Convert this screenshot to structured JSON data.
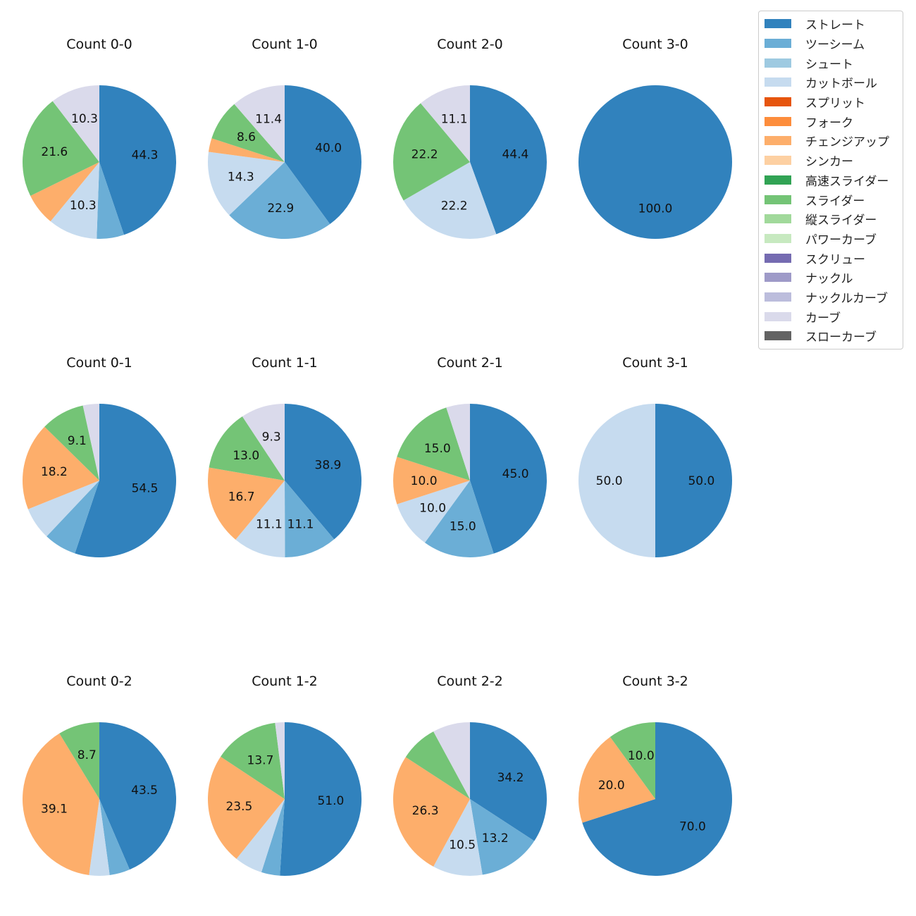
{
  "chart_data": {
    "type": "pie",
    "categories": [
      "ストレート",
      "ツーシーム",
      "シュート",
      "カットボール",
      "スプリット",
      "フォーク",
      "チェンジアップ",
      "シンカー",
      "高速スライダー",
      "スライダー",
      "縦スライダー",
      "パワーカーブ",
      "スクリュー",
      "ナックル",
      "ナックルカーブ",
      "カーブ",
      "スローカーブ"
    ],
    "colors": [
      "#3182bd",
      "#6baed6",
      "#9ecae1",
      "#c6dbef",
      "#e6550d",
      "#fd8d3c",
      "#fdae6b",
      "#fdd0a2",
      "#31a354",
      "#74c476",
      "#a1d99b",
      "#c7e9c0",
      "#756bb1",
      "#9e9ac8",
      "#bcbddc",
      "#dadaeb",
      "#636363"
    ],
    "pies": [
      {
        "title": "Count 0-0",
        "slices": [
          {
            "pitch": "ストレート",
            "value": 44.3,
            "label": "44.3"
          },
          {
            "pitch": "ツーシーム",
            "value": 5.7,
            "label": ""
          },
          {
            "pitch": "カットボール",
            "value": 10.3,
            "label": "10.3"
          },
          {
            "pitch": "チェンジアップ",
            "value": 6.7,
            "label": ""
          },
          {
            "pitch": "スライダー",
            "value": 21.6,
            "label": "21.6"
          },
          {
            "pitch": "カーブ",
            "value": 10.3,
            "label": "10.3"
          }
        ]
      },
      {
        "title": "Count 1-0",
        "slices": [
          {
            "pitch": "ストレート",
            "value": 40.0,
            "label": "40.0"
          },
          {
            "pitch": "ツーシーム",
            "value": 22.9,
            "label": "22.9"
          },
          {
            "pitch": "カットボール",
            "value": 14.3,
            "label": "14.3"
          },
          {
            "pitch": "チェンジアップ",
            "value": 2.9,
            "label": ""
          },
          {
            "pitch": "スライダー",
            "value": 8.6,
            "label": "8.6"
          },
          {
            "pitch": "カーブ",
            "value": 11.4,
            "label": "11.4"
          }
        ]
      },
      {
        "title": "Count 2-0",
        "slices": [
          {
            "pitch": "ストレート",
            "value": 44.4,
            "label": "44.4"
          },
          {
            "pitch": "カットボール",
            "value": 22.2,
            "label": "22.2"
          },
          {
            "pitch": "スライダー",
            "value": 22.2,
            "label": "22.2"
          },
          {
            "pitch": "カーブ",
            "value": 11.1,
            "label": "11.1"
          }
        ]
      },
      {
        "title": "Count 3-0",
        "slices": [
          {
            "pitch": "ストレート",
            "value": 100.0,
            "label": "100.0"
          }
        ]
      },
      {
        "title": "Count 0-1",
        "slices": [
          {
            "pitch": "ストレート",
            "value": 54.5,
            "label": "54.5"
          },
          {
            "pitch": "ツーシーム",
            "value": 6.8,
            "label": ""
          },
          {
            "pitch": "カットボール",
            "value": 6.8,
            "label": ""
          },
          {
            "pitch": "チェンジアップ",
            "value": 18.2,
            "label": "18.2"
          },
          {
            "pitch": "スライダー",
            "value": 9.1,
            "label": "9.1"
          },
          {
            "pitch": "カーブ",
            "value": 3.4,
            "label": ""
          }
        ]
      },
      {
        "title": "Count 1-1",
        "slices": [
          {
            "pitch": "ストレート",
            "value": 38.9,
            "label": "38.9"
          },
          {
            "pitch": "ツーシーム",
            "value": 11.1,
            "label": "11.1"
          },
          {
            "pitch": "カットボール",
            "value": 11.1,
            "label": "11.1"
          },
          {
            "pitch": "チェンジアップ",
            "value": 16.7,
            "label": "16.7"
          },
          {
            "pitch": "スライダー",
            "value": 13.0,
            "label": "13.0"
          },
          {
            "pitch": "カーブ",
            "value": 9.3,
            "label": "9.3"
          }
        ]
      },
      {
        "title": "Count 2-1",
        "slices": [
          {
            "pitch": "ストレート",
            "value": 45.0,
            "label": "45.0"
          },
          {
            "pitch": "ツーシーム",
            "value": 15.0,
            "label": "15.0"
          },
          {
            "pitch": "カットボール",
            "value": 10.0,
            "label": "10.0"
          },
          {
            "pitch": "チェンジアップ",
            "value": 10.0,
            "label": "10.0"
          },
          {
            "pitch": "スライダー",
            "value": 15.0,
            "label": "15.0"
          },
          {
            "pitch": "カーブ",
            "value": 5.0,
            "label": ""
          }
        ]
      },
      {
        "title": "Count 3-1",
        "slices": [
          {
            "pitch": "ストレート",
            "value": 50.0,
            "label": "50.0"
          },
          {
            "pitch": "カットボール",
            "value": 50.0,
            "label": "50.0"
          }
        ]
      },
      {
        "title": "Count 0-2",
        "slices": [
          {
            "pitch": "ストレート",
            "value": 43.5,
            "label": "43.5"
          },
          {
            "pitch": "ツーシーム",
            "value": 4.3,
            "label": ""
          },
          {
            "pitch": "カットボール",
            "value": 4.3,
            "label": ""
          },
          {
            "pitch": "チェンジアップ",
            "value": 39.1,
            "label": "39.1"
          },
          {
            "pitch": "スライダー",
            "value": 8.7,
            "label": "8.7"
          }
        ]
      },
      {
        "title": "Count 1-2",
        "slices": [
          {
            "pitch": "ストレート",
            "value": 51.0,
            "label": "51.0"
          },
          {
            "pitch": "ツーシーム",
            "value": 3.9,
            "label": ""
          },
          {
            "pitch": "カットボール",
            "value": 5.9,
            "label": ""
          },
          {
            "pitch": "チェンジアップ",
            "value": 23.5,
            "label": "23.5"
          },
          {
            "pitch": "スライダー",
            "value": 13.7,
            "label": "13.7"
          },
          {
            "pitch": "カーブ",
            "value": 2.0,
            "label": ""
          }
        ]
      },
      {
        "title": "Count 2-2",
        "slices": [
          {
            "pitch": "ストレート",
            "value": 34.2,
            "label": "34.2"
          },
          {
            "pitch": "ツーシーム",
            "value": 13.2,
            "label": "13.2"
          },
          {
            "pitch": "カットボール",
            "value": 10.5,
            "label": "10.5"
          },
          {
            "pitch": "チェンジアップ",
            "value": 26.3,
            "label": "26.3"
          },
          {
            "pitch": "スライダー",
            "value": 7.9,
            "label": ""
          },
          {
            "pitch": "カーブ",
            "value": 7.9,
            "label": ""
          }
        ]
      },
      {
        "title": "Count 3-2",
        "slices": [
          {
            "pitch": "ストレート",
            "value": 70.0,
            "label": "70.0"
          },
          {
            "pitch": "チェンジアップ",
            "value": 20.0,
            "label": "20.0"
          },
          {
            "pitch": "スライダー",
            "value": 10.0,
            "label": "10.0"
          }
        ]
      }
    ],
    "legend": {
      "position": "top-right"
    }
  }
}
